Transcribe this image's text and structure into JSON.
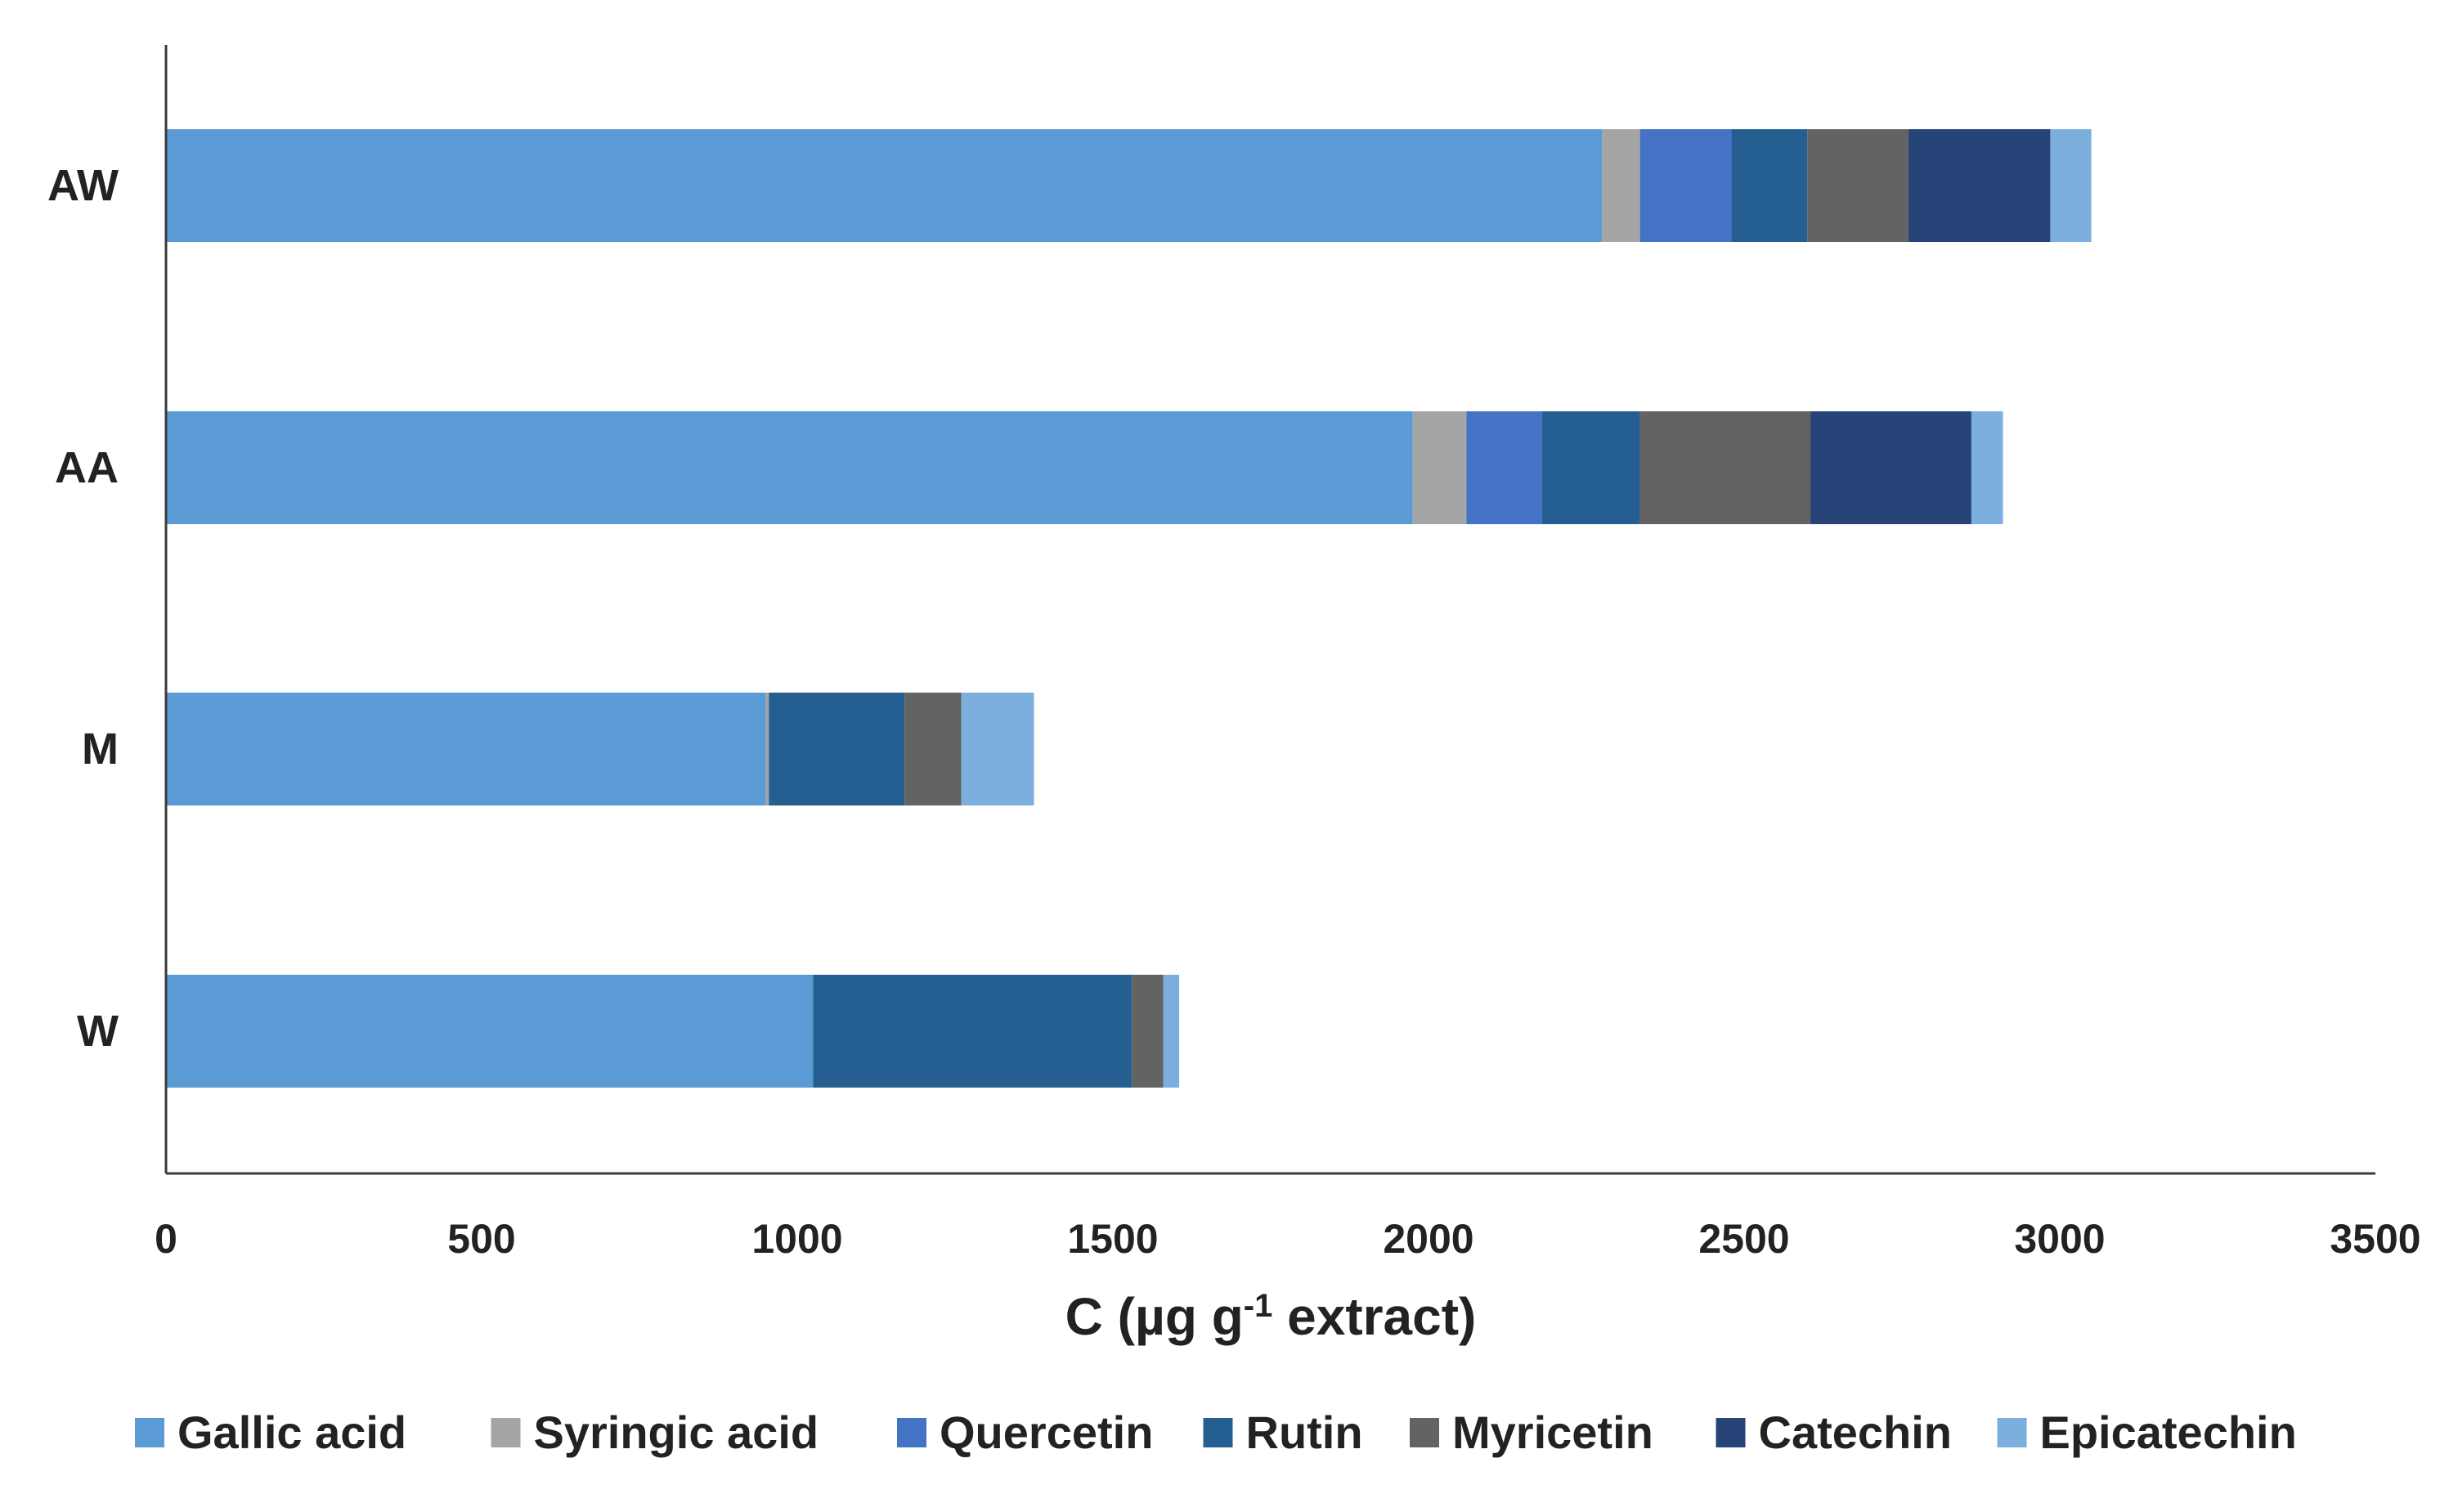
{
  "chart_data": {
    "type": "bar",
    "orientation": "horizontal",
    "stacked": true,
    "categories": [
      "AW",
      "AA",
      "M",
      "W"
    ],
    "series": [
      {
        "name": "Gallic acid",
        "color": "#5B9BD5",
        "values": [
          2275,
          1975,
          950,
          1025
        ]
      },
      {
        "name": "Syringic acid",
        "color": "#A5A5A5",
        "values": [
          60,
          85,
          5,
          0
        ]
      },
      {
        "name": "Quercetin",
        "color": "#4472C4",
        "values": [
          145,
          120,
          0,
          0
        ]
      },
      {
        "name": "Rutin",
        "color": "#255E91",
        "values": [
          120,
          155,
          215,
          505
        ]
      },
      {
        "name": "Myricetin",
        "color": "#636363",
        "values": [
          160,
          270,
          90,
          50
        ]
      },
      {
        "name": "Catechin",
        "color": "#264478",
        "values": [
          225,
          255,
          0,
          0
        ]
      },
      {
        "name": "Epicatechin",
        "color": "#7CAFDD",
        "values": [
          65,
          50,
          115,
          25
        ]
      }
    ],
    "xlim": [
      0,
      3500
    ],
    "xticks": [
      "0",
      "500",
      "1000",
      "1500",
      "2000",
      "2500",
      "3000",
      "3500"
    ],
    "xlabel": {
      "prefix": "C (µg g",
      "sup": "-1",
      "suffix": " extract)"
    },
    "ylabel": "",
    "grid": false,
    "legend_position": "bottom"
  }
}
